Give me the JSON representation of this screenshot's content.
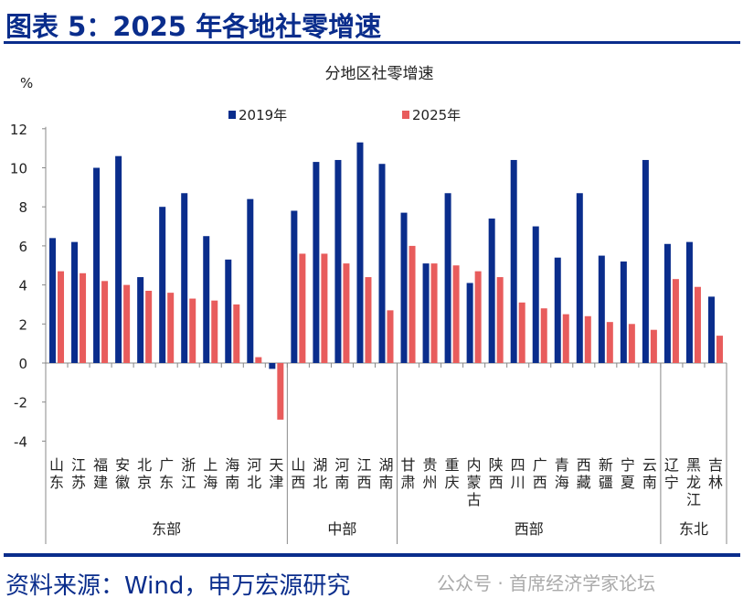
{
  "header": {
    "title": "图表 5：2025 年各地社零增速"
  },
  "footer": {
    "source": "资料来源：Wind，申万宏源研究",
    "watermark": "公众号 · 首席经济学家论坛"
  },
  "colors": {
    "s2019": "#0a2d8c",
    "s2025": "#e85c5c"
  },
  "chart_data": {
    "type": "bar",
    "title": "分地区社零增速",
    "ylabel": "%",
    "ylim": [
      -4,
      12
    ],
    "yticks": [
      -4,
      -2,
      0,
      2,
      4,
      6,
      8,
      10,
      12
    ],
    "legend_position": "top",
    "categories": [
      "山东",
      "江苏",
      "福建",
      "安徽",
      "北京",
      "广东",
      "浙江",
      "上海",
      "海南",
      "河北",
      "天津",
      "山西",
      "湖北",
      "河南",
      "江西",
      "湖南",
      "甘肃",
      "贵州",
      "重庆",
      "内蒙古",
      "陕西",
      "四川",
      "广西",
      "青海",
      "西藏",
      "新疆",
      "宁夏",
      "云南",
      "辽宁",
      "黑龙江",
      "吉林"
    ],
    "groups": [
      {
        "name": "东部",
        "count": 11
      },
      {
        "name": "中部",
        "count": 5
      },
      {
        "name": "西部",
        "count": 12
      },
      {
        "name": "东北",
        "count": 3
      }
    ],
    "series": [
      {
        "name": "2019年",
        "values": [
          6.4,
          6.2,
          10.0,
          10.6,
          4.4,
          8.0,
          8.7,
          6.5,
          5.3,
          8.4,
          -0.3,
          7.8,
          10.3,
          10.4,
          11.3,
          10.2,
          7.7,
          5.1,
          8.7,
          4.1,
          7.4,
          10.4,
          7.0,
          5.4,
          8.7,
          5.5,
          5.2,
          10.4,
          6.1,
          6.2,
          3.4
        ]
      },
      {
        "name": "2025年",
        "values": [
          4.7,
          4.6,
          4.2,
          4.0,
          3.7,
          3.6,
          3.3,
          3.2,
          3.0,
          0.3,
          -2.9,
          5.6,
          5.6,
          5.1,
          4.4,
          2.7,
          6.0,
          5.1,
          5.0,
          4.7,
          4.4,
          3.1,
          2.8,
          2.5,
          2.4,
          2.1,
          2.0,
          1.7,
          4.3,
          3.9,
          1.4
        ]
      }
    ]
  }
}
